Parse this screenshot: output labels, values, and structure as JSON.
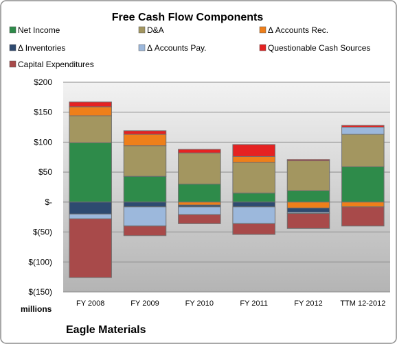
{
  "chart_data": {
    "type": "bar",
    "stacked": true,
    "title": "Free Cash Flow Components",
    "unit_label": "millions",
    "source_label": "Eagle Materials",
    "categories": [
      "FY 2008",
      "FY 2009",
      "FY 2010",
      "FY 2011",
      "FY 2012",
      "TTM 12-2012"
    ],
    "ylim": [
      -150,
      200
    ],
    "yticks": [
      200,
      150,
      100,
      50,
      0,
      -50,
      -100,
      -150
    ],
    "ytick_labels": [
      "$200",
      "$150",
      "$100",
      "$50",
      "$-",
      "$(50)",
      "$(100)",
      "$(150)"
    ],
    "grid": true,
    "legend_position": "top",
    "series": [
      {
        "name": "Net Income",
        "color": "#2e8b4a",
        "values": [
          99,
          43,
          30,
          15,
          19,
          59
        ]
      },
      {
        "name": "D&A",
        "color": "#a39660",
        "values": [
          45,
          51,
          52,
          51,
          50,
          54
        ]
      },
      {
        "name": "Δ Accounts Rec.",
        "color": "#ee7f1a",
        "values": [
          15,
          19,
          -5,
          10,
          -10,
          -8
        ]
      },
      {
        "name": "Δ Inventories",
        "color": "#2e4a70",
        "values": [
          -20,
          -8,
          -3,
          -8,
          -7,
          0
        ]
      },
      {
        "name": "Δ Accounts Pay.",
        "color": "#9cb8dc",
        "values": [
          -8,
          -32,
          -13,
          -28,
          -2,
          12
        ]
      },
      {
        "name": "Questionable Cash Sources",
        "color": "#e52222",
        "values": [
          8,
          6,
          6,
          20,
          2,
          3
        ]
      },
      {
        "name": "Capital Expenditures",
        "color": "#a84a4a",
        "values": [
          -98,
          -16,
          -15,
          -18,
          -25,
          -32
        ]
      }
    ]
  }
}
